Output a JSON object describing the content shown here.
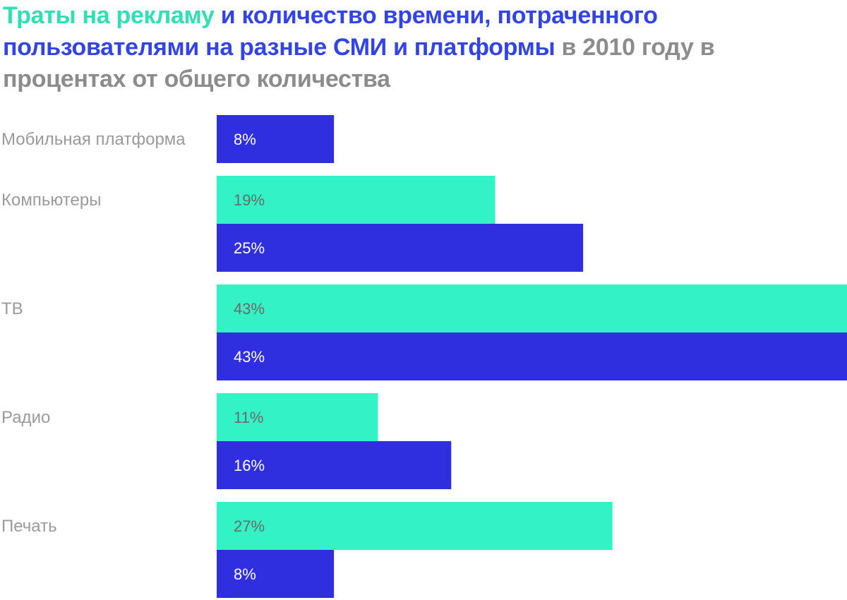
{
  "title": {
    "part_spend": "Траты на рекламу",
    "part_time": "и количество времени, потраченного пользователями на разные СМИ и платформы",
    "part_rest": "в 2010 году в процентах от общего количества"
  },
  "colors": {
    "spend": "#33f2c6",
    "time": "#2f2fe0",
    "spend_label": "#6a6a6a",
    "time_label": "#ffffff",
    "category_label": "#9a9a9a"
  },
  "chart_data": {
    "type": "bar",
    "orientation": "horizontal",
    "categories": [
      "Мобильная платформа",
      "Компьютеры",
      "ТВ",
      "Радио",
      "Печать"
    ],
    "series": [
      {
        "key": "spend",
        "values": [
          null,
          19,
          43,
          11,
          27
        ],
        "labels": [
          "",
          "19%",
          "43%",
          "11%",
          "27%"
        ]
      },
      {
        "key": "time",
        "values": [
          8,
          25,
          43,
          16,
          8
        ],
        "labels": [
          "8%",
          "25%",
          "43%",
          "16%",
          "8%"
        ]
      }
    ],
    "xlim": [
      0,
      43
    ],
    "grid": false,
    "legend": "none"
  }
}
